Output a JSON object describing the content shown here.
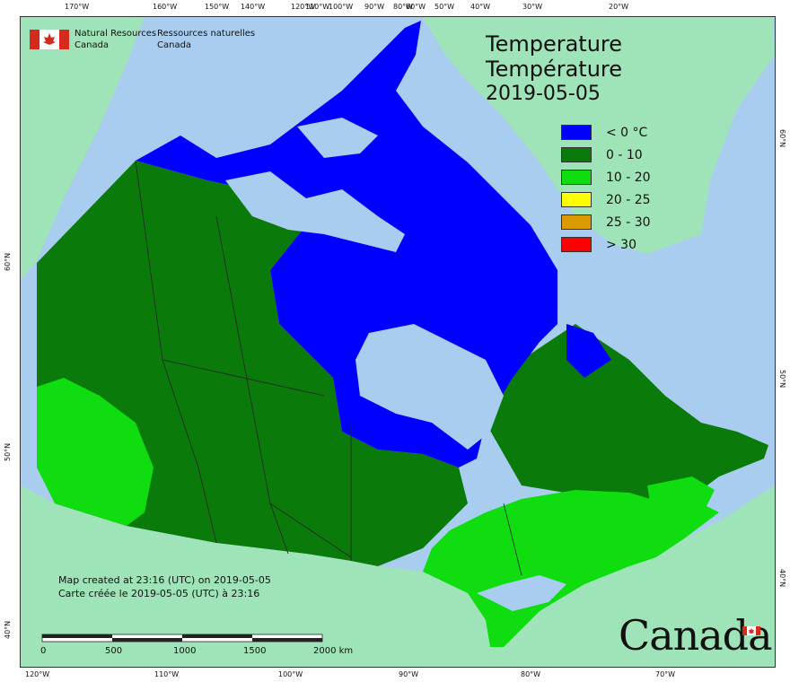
{
  "agency": {
    "name_en_line1": "Natural Resources",
    "name_en_line2": "Canada",
    "name_fr_line1": "Ressources naturelles",
    "name_fr_line2": "Canada"
  },
  "title": {
    "en": "Temperature",
    "fr": "Température",
    "date": "2019-05-05"
  },
  "legend": [
    {
      "label": "< 0 °C",
      "color": "#0000ff"
    },
    {
      "label": "0 - 10",
      "color": "#0a7a0a"
    },
    {
      "label": "10 - 20",
      "color": "#10dd10"
    },
    {
      "label": "20 - 25",
      "color": "#ffff00"
    },
    {
      "label": "25 - 30",
      "color": "#dd9a00"
    },
    {
      "label": "> 30",
      "color": "#ff0000"
    }
  ],
  "credits": {
    "line1": "Map created at 23:16 (UTC) on 2019-05-05",
    "line2": "Carte créée le 2019-05-05 (UTC) à 23:16"
  },
  "scale": {
    "labels": [
      "0",
      "500",
      "1000",
      "1500",
      "2000  km"
    ]
  },
  "graticule": {
    "top": [
      "170°W",
      "160°W",
      "150°W",
      "140°W",
      "120°W",
      "110°W",
      "100°W",
      "90°W",
      "80°W",
      "60°W",
      "50°W",
      "40°W",
      "30°W",
      "20°W"
    ],
    "bottom": [
      "120°W",
      "110°W",
      "100°W",
      "90°W",
      "80°W",
      "70°W"
    ],
    "left": [
      "60°N",
      "50°N",
      "40°N"
    ],
    "right": [
      "60°N",
      "50°N",
      "40°N"
    ]
  },
  "wordmark": "Canada",
  "colors": {
    "ocean": "#a9cdee",
    "foreign_land": "#9fe4b8",
    "cold": "#0000ff",
    "cool": "#0a7a0a",
    "mild": "#10dd10",
    "flag_red": "#d52b1e"
  }
}
